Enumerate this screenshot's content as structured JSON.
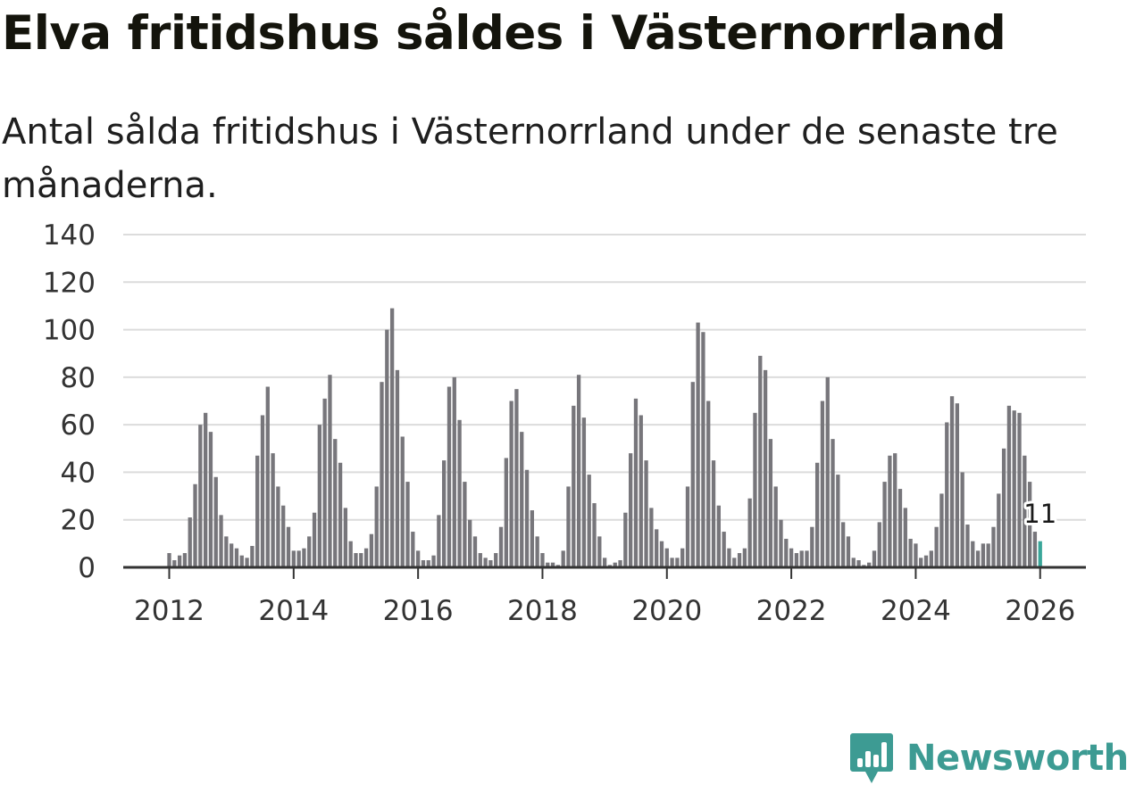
{
  "header": {
    "title": "Elva fritidshus såldes i Västernorrland",
    "subtitle": "Antal sålda fritidshus i Västernorrland under de senaste tre månaderna."
  },
  "chart_data": {
    "type": "bar",
    "title": "Elva fritidshus såldes i Västernorrland",
    "subtitle": "Antal sålda fritidshus i Västernorrland under de senaste tre månaderna.",
    "xlabel": "",
    "ylabel": "",
    "ylim": [
      0,
      140
    ],
    "yticks": [
      0,
      20,
      40,
      60,
      80,
      100,
      120,
      140
    ],
    "xticks": [
      "2012",
      "2014",
      "2016",
      "2018",
      "2020",
      "2022",
      "2024",
      "2026"
    ],
    "start": "2012-01",
    "interval": "month",
    "grid": true,
    "legend": "none",
    "colors": {
      "bar": "#77767b",
      "highlight": "#3aa69a",
      "grid": "#dcdcdc",
      "axis": "#333333"
    },
    "highlight_label": "11",
    "values": [
      6,
      3,
      5,
      6,
      21,
      35,
      60,
      65,
      57,
      38,
      22,
      13,
      10,
      8,
      5,
      4,
      9,
      47,
      64,
      76,
      48,
      34,
      26,
      17,
      7,
      7,
      8,
      13,
      23,
      60,
      71,
      81,
      54,
      44,
      25,
      11,
      6,
      6,
      8,
      14,
      34,
      78,
      100,
      109,
      83,
      55,
      36,
      15,
      7,
      3,
      3,
      5,
      22,
      45,
      76,
      80,
      62,
      36,
      20,
      13,
      6,
      4,
      3,
      6,
      17,
      46,
      70,
      75,
      57,
      41,
      24,
      13,
      6,
      2,
      2,
      1,
      7,
      34,
      68,
      81,
      63,
      39,
      27,
      13,
      4,
      1,
      2,
      3,
      23,
      48,
      71,
      64,
      45,
      25,
      16,
      11,
      8,
      4,
      4,
      8,
      34,
      78,
      103,
      99,
      70,
      45,
      26,
      15,
      8,
      4,
      6,
      8,
      29,
      65,
      89,
      83,
      54,
      34,
      20,
      12,
      8,
      6,
      7,
      7,
      17,
      44,
      70,
      80,
      54,
      39,
      19,
      13,
      4,
      3,
      1,
      2,
      7,
      19,
      36,
      47,
      48,
      33,
      25,
      12,
      10,
      4,
      5,
      7,
      17,
      31,
      61,
      72,
      69,
      40,
      18,
      11,
      7,
      10,
      10,
      17,
      31,
      50,
      68,
      66,
      65,
      47,
      36,
      15,
      11
    ]
  },
  "logo": {
    "brand": "Newsworthy",
    "icon": "newsworthy-bar-chart-icon",
    "color": "#3d9b93"
  }
}
